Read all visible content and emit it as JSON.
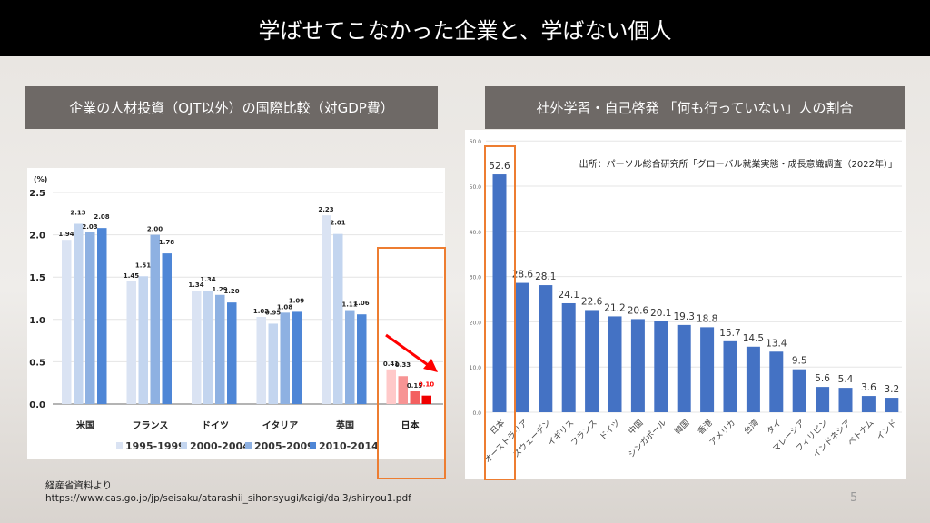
{
  "slide": {
    "title": "学ばせてこなかった企業と、学ばない個人",
    "page_number": "5",
    "source_note": "経産省資料より",
    "source_url": "https://www.cas.go.jp/jp/seisaku/atarashii_sihonsyugi/kaigi/dai3/shiryou1.pdf"
  },
  "chart_data": [
    {
      "type": "bar",
      "title": "企業の人材投資（OJT以外）の国際比較（対GDP費）",
      "ylabel": "(%)",
      "ylim": [
        0,
        2.5
      ],
      "yticks": [
        "0.0",
        "0.5",
        "1.0",
        "1.5",
        "2.0",
        "2.5"
      ],
      "categories": [
        "米国",
        "フランス",
        "ドイツ",
        "イタリア",
        "英国",
        "日本"
      ],
      "series": [
        {
          "name": "1995-1999",
          "values": [
            1.94,
            1.45,
            1.34,
            1.03,
            2.23,
            0.41
          ],
          "color": "#dae3f3"
        },
        {
          "name": "2000-2004",
          "values": [
            2.13,
            1.51,
            1.34,
            0.95,
            2.01,
            0.33
          ],
          "color": "#c3d5ef"
        },
        {
          "name": "2005-2009",
          "values": [
            2.03,
            2.0,
            1.29,
            1.08,
            1.11,
            0.15
          ],
          "color": "#8eb1e2"
        },
        {
          "name": "2010-2014",
          "values": [
            2.08,
            1.78,
            1.2,
            1.09,
            1.06,
            0.1
          ],
          "color": "#4e86d6"
        }
      ],
      "highlight": {
        "category": "日本",
        "colors": [
          "#ffc9c9",
          "#f79494",
          "#f36060",
          "#f00000"
        ],
        "box_color": "#ed7d31",
        "arrow": "decreasing"
      },
      "grid": true,
      "legend": "bottom"
    },
    {
      "type": "bar",
      "title": "社外学習・自己啓発 「何も行っていない」人の割合",
      "ylim": [
        0,
        60
      ],
      "yticks": [
        "0.0",
        "10.0",
        "20.0",
        "30.0",
        "40.0",
        "50.0",
        "60.0"
      ],
      "annotation": "出所：パーソル総合研究所「グローバル就業実態・成長意識調査（2022年）」",
      "categories": [
        "日本",
        "オーストラリア",
        "スウェーデン",
        "イギリス",
        "フランス",
        "ドイツ",
        "中国",
        "シンガポール",
        "韓国",
        "香港",
        "アメリカ",
        "台湾",
        "タイ",
        "マレーシア",
        "フィリピン",
        "インドネシア",
        "ベトナム",
        "インド"
      ],
      "values": [
        52.6,
        28.6,
        28.1,
        24.1,
        22.6,
        21.2,
        20.6,
        20.1,
        19.3,
        18.8,
        15.7,
        14.5,
        13.4,
        9.5,
        5.6,
        5.4,
        3.6,
        3.2
      ],
      "value_labels": [
        "52.6",
        "28.6",
        "28.1",
        "24.1",
        "22.6",
        "21.2",
        "20.6",
        "20.1",
        "19.3",
        "18.8",
        "15.7",
        "14.5",
        "13.4",
        "9.5",
        "5.6",
        "5.4",
        "3.6",
        "3.2"
      ],
      "color": "#4472c4",
      "highlight": {
        "category": "日本",
        "box_color": "#ed7d31"
      },
      "grid": true
    }
  ]
}
